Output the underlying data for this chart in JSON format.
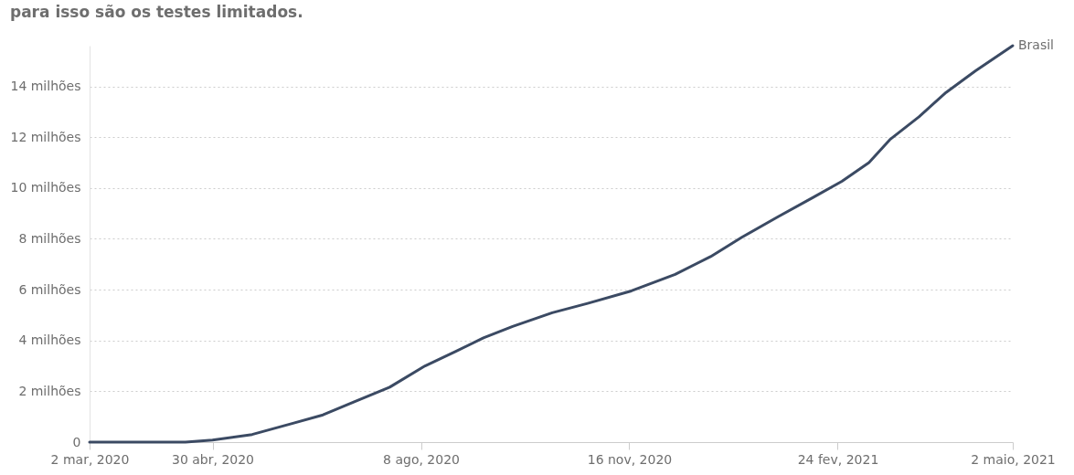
{
  "chart_data": {
    "type": "line",
    "subtitle": "para isso são os testes limitados.",
    "x": [
      "2020-03-02",
      "2020-04-17",
      "2020-04-30",
      "2020-05-19",
      "2020-06-08",
      "2020-06-22",
      "2020-07-07",
      "2020-07-24",
      "2020-08-10",
      "2020-08-25",
      "2020-09-07",
      "2020-09-21",
      "2020-10-10",
      "2020-10-27",
      "2020-11-17",
      "2020-12-08",
      "2020-12-25",
      "2021-01-09",
      "2021-01-26",
      "2021-02-12",
      "2021-02-26",
      "2021-03-11",
      "2021-03-21",
      "2021-04-04",
      "2021-04-17",
      "2021-05-01",
      "2021-05-19"
    ],
    "series": [
      {
        "name": "Brasil",
        "color": "#3b4a63",
        "values": [
          0,
          0,
          0.08,
          0.3,
          0.75,
          1.07,
          1.59,
          2.16,
          3.0,
          3.58,
          4.1,
          4.55,
          5.09,
          5.46,
          5.95,
          6.6,
          7.3,
          8.06,
          8.85,
          9.62,
          10.26,
          11.0,
          11.9,
          12.8,
          13.76,
          14.6,
          15.6
        ]
      }
    ],
    "xlim": [
      "2020-03-02",
      "2021-05-19"
    ],
    "xticks": [
      {
        "value": "2020-03-02",
        "label": "2 mar, 2020"
      },
      {
        "value": "2020-04-30",
        "label": "30 abr, 2020"
      },
      {
        "value": "2020-08-08",
        "label": "8 ago, 2020"
      },
      {
        "value": "2020-11-16",
        "label": "16 nov, 2020"
      },
      {
        "value": "2021-02-24",
        "label": "24 fev, 2021"
      },
      {
        "value": "2021-05-19",
        "label": "2 maio, 2021"
      }
    ],
    "ylim": [
      0,
      15.6
    ],
    "yticks": [
      0,
      {
        "value": 2,
        "label": "2 milhões"
      },
      {
        "value": 4,
        "label": "4 milhões"
      },
      {
        "value": 6,
        "label": "6 milhões"
      },
      {
        "value": 8,
        "label": "8 milhões"
      },
      {
        "value": 10,
        "label": "10 milhões"
      },
      {
        "value": 12,
        "label": "12 milhões"
      },
      {
        "value": 14,
        "label": "14 milhões"
      }
    ],
    "grid": "y",
    "legend": false,
    "marker": "none",
    "line_style": "solid"
  }
}
